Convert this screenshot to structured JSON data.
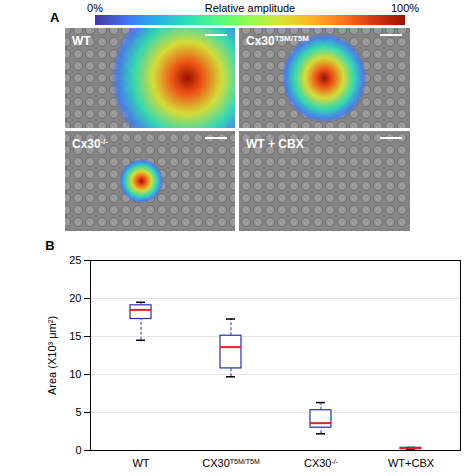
{
  "figure": {
    "panel_a": {
      "letter": "A",
      "colorbar": {
        "title": "Relative amplitude",
        "range": [
          0,
          100
        ],
        "ticks": [
          {
            "value": 0,
            "label": "0%"
          },
          {
            "value": 100,
            "label": "100%"
          }
        ]
      },
      "images": [
        {
          "text": "WT"
        },
        {
          "text": "Cx30",
          "superscript": "T5M/T5M"
        },
        {
          "text": "Cx30",
          "superscript": "-/-"
        },
        {
          "text": "WT + CBX"
        }
      ]
    },
    "panel_b": {
      "letter": "B"
    }
  },
  "chart_data": {
    "type": "box",
    "categories": [
      {
        "text": "WT"
      },
      {
        "text": "CX30",
        "superscript": "T5M/T5M"
      },
      {
        "text": "CX30",
        "superscript": "-/-"
      },
      {
        "text": "WT+CBX"
      }
    ],
    "min": [
      14.5,
      9.7,
      2.2,
      0.1
    ],
    "q1": [
      17.3,
      10.8,
      3.0,
      0.2
    ],
    "median": [
      18.5,
      13.6,
      3.6,
      0.3
    ],
    "q3": [
      19.1,
      15.1,
      5.3,
      0.35
    ],
    "max": [
      19.5,
      17.3,
      6.3,
      0.4
    ],
    "color": "#2233aa",
    "ylabel": "Area (X10³ μm²)",
    "ylim": [
      0,
      25
    ],
    "yticks": [
      0,
      5,
      10,
      15,
      20,
      25
    ],
    "grid": true
  }
}
